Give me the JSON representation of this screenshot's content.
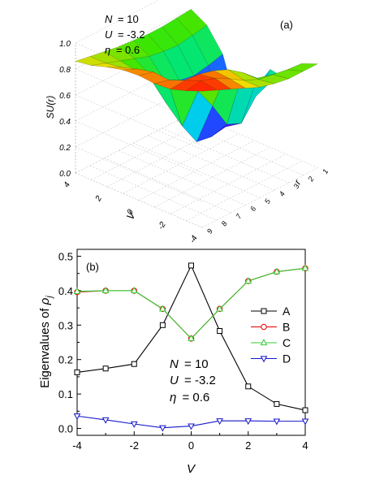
{
  "chart_data": [
    {
      "type": "surface3d",
      "panel_label": "(a)",
      "zlabel": "SU(r)",
      "ylabel": "V",
      "xlabel": "r",
      "params": [
        {
          "name": "N",
          "value": "= 10"
        },
        {
          "name": "U",
          "value": "= -3.2"
        },
        {
          "name": "η",
          "value": "= 0.6"
        }
      ],
      "z_ticks": [
        "0.0",
        "0.2",
        "0.4",
        "0.6",
        "0.8",
        "1.0"
      ],
      "v_ticks": [
        "4",
        "2",
        "0",
        "-2",
        "-4"
      ],
      "r_ticks": [
        "1",
        "2",
        "3",
        "4",
        "5",
        "6",
        "7",
        "8",
        "9"
      ],
      "zlim": [
        0,
        1.0
      ],
      "v_values": [
        -4,
        -3,
        -2,
        -1,
        0,
        1,
        2,
        3,
        4
      ],
      "r_values": [
        1,
        2,
        3,
        4,
        5,
        6,
        7,
        8,
        9
      ],
      "z_values": [
        [
          0.86,
          0.84,
          0.82,
          0.8,
          0.79,
          0.78,
          0.78,
          0.79,
          0.8
        ],
        [
          0.88,
          0.84,
          0.8,
          0.76,
          0.72,
          0.7,
          0.69,
          0.71,
          0.73
        ],
        [
          0.92,
          0.86,
          0.78,
          0.68,
          0.58,
          0.53,
          0.51,
          0.53,
          0.56
        ],
        [
          0.95,
          0.9,
          0.75,
          0.52,
          0.35,
          0.25,
          0.2,
          0.18,
          0.17
        ],
        [
          0.96,
          0.93,
          0.8,
          0.4,
          0.22,
          0.2,
          0.22,
          0.3,
          0.4
        ],
        [
          0.95,
          0.92,
          0.86,
          0.72,
          0.55,
          0.35,
          0.3,
          0.45,
          0.6
        ],
        [
          0.96,
          0.97,
          0.96,
          0.93,
          0.88,
          0.8,
          0.7,
          0.62,
          0.58
        ],
        [
          1.0,
          1.02,
          0.98,
          0.92,
          0.85,
          0.8,
          0.78,
          0.76,
          0.75
        ],
        [
          1.05,
          1.0,
          0.95,
          0.9,
          0.85,
          0.82,
          0.8,
          0.8,
          0.8
        ]
      ]
    },
    {
      "type": "line",
      "panel_label": "(b)",
      "xlabel": "V",
      "ylabel": "Eigenvalues of ρj",
      "xlim": [
        -4,
        4
      ],
      "ylim": [
        -0.02,
        0.52
      ],
      "x_ticks": [
        "-4",
        "-2",
        "0",
        "2",
        "4"
      ],
      "y_ticks": [
        "0.0",
        "0.1",
        "0.2",
        "0.3",
        "0.4",
        "0.5"
      ],
      "x": [
        -4,
        -3,
        -2,
        -1,
        0,
        1,
        2,
        3,
        4
      ],
      "series": [
        {
          "name": "A",
          "color": "#000000",
          "marker": "square",
          "values": [
            0.163,
            0.174,
            0.187,
            0.3,
            0.473,
            0.283,
            0.122,
            0.071,
            0.053
          ]
        },
        {
          "name": "B",
          "color": "#e00000",
          "marker": "circle",
          "values": [
            0.396,
            0.4,
            0.4,
            0.347,
            0.261,
            0.347,
            0.428,
            0.455,
            0.465
          ]
        },
        {
          "name": "C",
          "color": "#33cc33",
          "marker": "triangle-up",
          "values": [
            0.398,
            0.4,
            0.4,
            0.347,
            0.261,
            0.347,
            0.428,
            0.455,
            0.465
          ]
        },
        {
          "name": "D",
          "color": "#1515c8",
          "marker": "triangle-down",
          "values": [
            0.036,
            0.025,
            0.013,
            0.002,
            0.007,
            0.022,
            0.022,
            0.021,
            0.021
          ]
        }
      ],
      "params": [
        {
          "name": "N",
          "value": "= 10"
        },
        {
          "name": "U",
          "value": "= -3.2"
        },
        {
          "name": "η",
          "value": "= 0.6"
        }
      ],
      "legend_position": "right",
      "grid": false
    }
  ]
}
